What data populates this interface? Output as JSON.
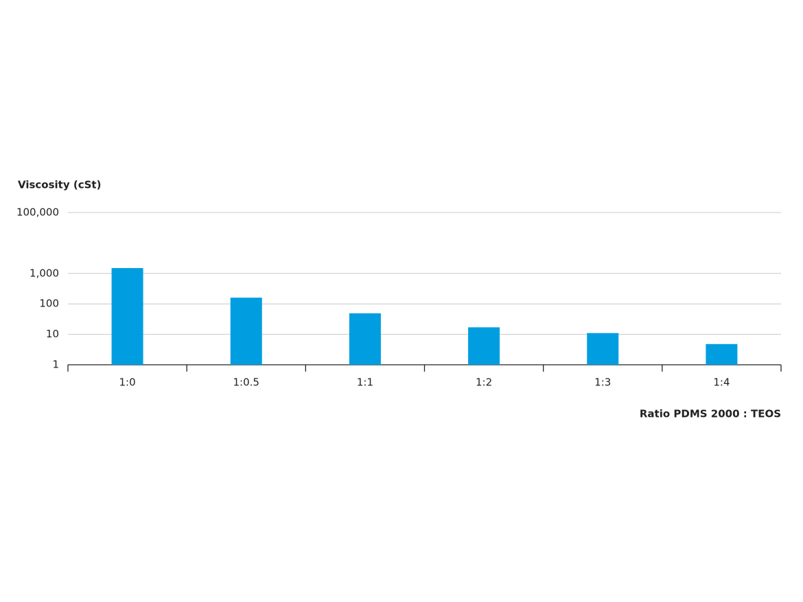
{
  "chart_data": {
    "type": "bar",
    "y_label": "Viscosity (cSt)",
    "x_label": "Ratio PDMS 2000 : TEOS",
    "categories": [
      "1:0",
      "1:0.5",
      "1:1",
      "1:2",
      "1:3",
      "1:4"
    ],
    "values": [
      1500,
      160,
      49,
      17,
      11,
      4.8
    ],
    "color": "#009ee0",
    "log_scale": true,
    "ylim": [
      1,
      100000
    ],
    "yticks": [
      1,
      10,
      100,
      {
        "value": 1000,
        "label": "1,000"
      },
      {
        "value": 100000,
        "label": "100,000"
      }
    ],
    "grid": true
  }
}
